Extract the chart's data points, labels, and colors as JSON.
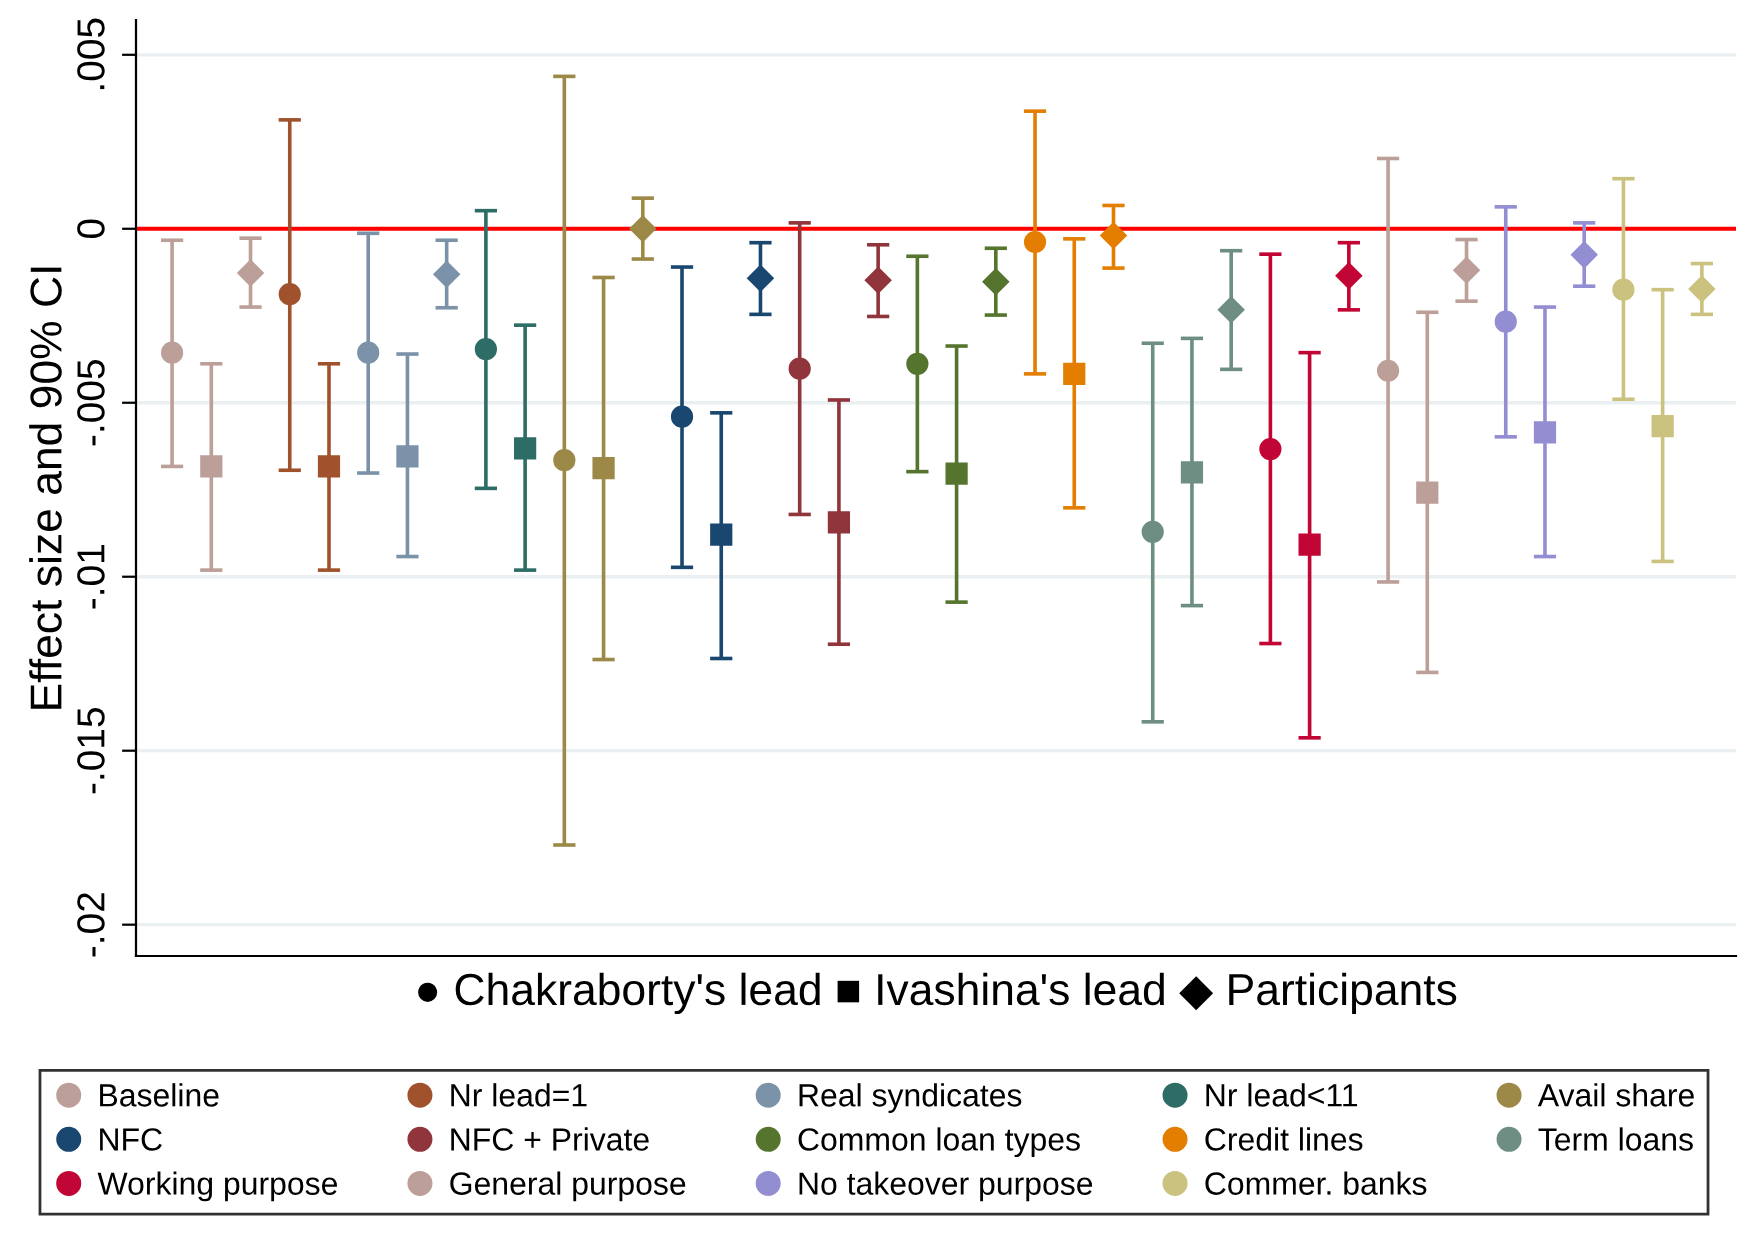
{
  "chart_data": {
    "type": "scatter",
    "ylabel": "Effect size and 90% CI",
    "xlabel": "● Chakraborty's lead ■ Ivashina's lead ◆ Participants",
    "categories": [
      null,
      null,
      null,
      null,
      null,
      null,
      null,
      null,
      null,
      null,
      null,
      null,
      null,
      null,
      null,
      null,
      null,
      null,
      null,
      null,
      null,
      null,
      null,
      null,
      null,
      null,
      null,
      null,
      null,
      null,
      null,
      null,
      null,
      null,
      null,
      null,
      null,
      null,
      null,
      null
    ],
    "marker": [
      "circle",
      "square",
      "diamond",
      "circle",
      "square",
      "circle",
      "square",
      "diamond",
      "circle",
      "square",
      "circle",
      "square",
      "diamond",
      "circle",
      "square",
      "diamond",
      "circle",
      "square",
      "diamond",
      "circle",
      "square",
      "diamond",
      "circle",
      "square",
      "diamond",
      "circle",
      "square",
      "diamond",
      "circle",
      "square",
      "diamond",
      "circle",
      "square",
      "diamond",
      "circle",
      "square",
      "diamond",
      "circle",
      "square",
      "diamond"
    ],
    "ylim": [
      -0.0209,
      0.006
    ],
    "yticks": [
      {
        "value": 0.005,
        "label": ".005"
      },
      {
        "value": 0,
        "label": "0"
      },
      {
        "value": -0.005,
        "label": "-.005"
      },
      {
        "value": -0.01,
        "label": "-.01"
      },
      {
        "value": -0.015,
        "label": "-.015"
      },
      {
        "value": -0.02,
        "label": "-.02"
      }
    ],
    "tick_labels": "y",
    "grid": "y",
    "legend": "bottom",
    "ref_lines": [
      {
        "axis": "y",
        "value": 0,
        "color": "#ff0000"
      }
    ],
    "series": [
      {
        "name": "Baseline",
        "color": "#bc9f98",
        "values": [
          -0.00356,
          -0.00683,
          -0.00127,
          null,
          null,
          null,
          null,
          null,
          null,
          null,
          null,
          null,
          null,
          null,
          null,
          null,
          null,
          null,
          null,
          null,
          null,
          null,
          null,
          null,
          null,
          null,
          null,
          null,
          null,
          null,
          null,
          null,
          null,
          null,
          null,
          null,
          null,
          null,
          null,
          null
        ],
        "errors": [
          [
            -0.00683,
            -0.00033
          ],
          [
            -0.00981,
            -0.00388
          ],
          [
            -0.00225,
            -0.00027
          ],
          null,
          null,
          null,
          null,
          null,
          null,
          null,
          null,
          null,
          null,
          null,
          null,
          null,
          null,
          null,
          null,
          null,
          null,
          null,
          null,
          null,
          null,
          null,
          null,
          null,
          null,
          null,
          null,
          null,
          null,
          null,
          null,
          null,
          null,
          null,
          null,
          null
        ]
      },
      {
        "name": "Nr lead=1",
        "color": "#a0522d",
        "values": [
          null,
          null,
          null,
          -0.00188,
          -0.00683,
          null,
          null,
          null,
          null,
          null,
          null,
          null,
          null,
          null,
          null,
          null,
          null,
          null,
          null,
          null,
          null,
          null,
          null,
          null,
          null,
          null,
          null,
          null,
          null,
          null,
          null,
          null,
          null,
          null,
          null,
          null,
          null,
          null,
          null,
          null
        ],
        "errors": [
          null,
          null,
          null,
          [
            -0.00694,
            0.00313
          ],
          [
            -0.00981,
            -0.00388
          ],
          null,
          null,
          null,
          null,
          null,
          null,
          null,
          null,
          null,
          null,
          null,
          null,
          null,
          null,
          null,
          null,
          null,
          null,
          null,
          null,
          null,
          null,
          null,
          null,
          null,
          null,
          null,
          null,
          null,
          null,
          null,
          null,
          null,
          null,
          null
        ]
      },
      {
        "name": "Real syndicates",
        "color": "#7b92a8",
        "values": [
          null,
          null,
          null,
          null,
          null,
          -0.00356,
          -0.00654,
          -0.00131,
          null,
          null,
          null,
          null,
          null,
          null,
          null,
          null,
          null,
          null,
          null,
          null,
          null,
          null,
          null,
          null,
          null,
          null,
          null,
          null,
          null,
          null,
          null,
          null,
          null,
          null,
          null,
          null,
          null,
          null,
          null,
          null
        ],
        "errors": [
          null,
          null,
          null,
          null,
          null,
          [
            -0.00702,
            -0.00013
          ],
          [
            -0.00942,
            -0.0036
          ],
          [
            -0.00227,
            -0.00033
          ],
          null,
          null,
          null,
          null,
          null,
          null,
          null,
          null,
          null,
          null,
          null,
          null,
          null,
          null,
          null,
          null,
          null,
          null,
          null,
          null,
          null,
          null,
          null,
          null,
          null,
          null,
          null,
          null,
          null,
          null,
          null,
          null
        ]
      },
      {
        "name": "Nr lead<11",
        "color": "#2d6d66",
        "values": [
          null,
          null,
          null,
          null,
          null,
          null,
          null,
          null,
          -0.00346,
          -0.00631,
          null,
          null,
          null,
          null,
          null,
          null,
          null,
          null,
          null,
          null,
          null,
          null,
          null,
          null,
          null,
          null,
          null,
          null,
          null,
          null,
          null,
          null,
          null,
          null,
          null,
          null,
          null,
          null,
          null,
          null
        ],
        "errors": [
          null,
          null,
          null,
          null,
          null,
          null,
          null,
          null,
          [
            -0.00746,
            0.00052
          ],
          [
            -0.00981,
            -0.00277
          ],
          null,
          null,
          null,
          null,
          null,
          null,
          null,
          null,
          null,
          null,
          null,
          null,
          null,
          null,
          null,
          null,
          null,
          null,
          null,
          null,
          null,
          null,
          null,
          null,
          null,
          null,
          null,
          null,
          null,
          null
        ]
      },
      {
        "name": "Avail share",
        "color": "#9c8847",
        "values": [
          null,
          null,
          null,
          null,
          null,
          null,
          null,
          null,
          null,
          null,
          -0.00665,
          -0.00688,
          0.0,
          null,
          null,
          null,
          null,
          null,
          null,
          null,
          null,
          null,
          null,
          null,
          null,
          null,
          null,
          null,
          null,
          null,
          null,
          null,
          null,
          null,
          null,
          null,
          null,
          null,
          null,
          null
        ],
        "errors": [
          null,
          null,
          null,
          null,
          null,
          null,
          null,
          null,
          null,
          null,
          [
            -0.01771,
            0.00438
          ],
          [
            -0.01238,
            -0.0014
          ],
          [
            -0.00087,
            0.00088
          ],
          null,
          null,
          null,
          null,
          null,
          null,
          null,
          null,
          null,
          null,
          null,
          null,
          null,
          null,
          null,
          null,
          null,
          null,
          null,
          null,
          null,
          null,
          null,
          null,
          null,
          null,
          null
        ]
      },
      {
        "name": "NFC",
        "color": "#1a476f",
        "values": [
          null,
          null,
          null,
          null,
          null,
          null,
          null,
          null,
          null,
          null,
          null,
          null,
          null,
          -0.0054,
          -0.00879,
          -0.00142,
          null,
          null,
          null,
          null,
          null,
          null,
          null,
          null,
          null,
          null,
          null,
          null,
          null,
          null,
          null,
          null,
          null,
          null,
          null,
          null,
          null,
          null,
          null,
          null
        ],
        "errors": [
          null,
          null,
          null,
          null,
          null,
          null,
          null,
          null,
          null,
          null,
          null,
          null,
          null,
          [
            -0.00973,
            -0.0011
          ],
          [
            -0.01235,
            -0.00529
          ],
          [
            -0.00246,
            -0.0004
          ],
          null,
          null,
          null,
          null,
          null,
          null,
          null,
          null,
          null,
          null,
          null,
          null,
          null,
          null,
          null,
          null,
          null,
          null,
          null,
          null,
          null,
          null,
          null,
          null
        ]
      },
      {
        "name": "NFC + Private",
        "color": "#90353b",
        "values": [
          null,
          null,
          null,
          null,
          null,
          null,
          null,
          null,
          null,
          null,
          null,
          null,
          null,
          null,
          null,
          null,
          -0.00402,
          -0.00844,
          -0.00148,
          null,
          null,
          null,
          null,
          null,
          null,
          null,
          null,
          null,
          null,
          null,
          null,
          null,
          null,
          null,
          null,
          null,
          null,
          null,
          null,
          null
        ],
        "errors": [
          null,
          null,
          null,
          null,
          null,
          null,
          null,
          null,
          null,
          null,
          null,
          null,
          null,
          null,
          null,
          null,
          [
            -0.00821,
            0.00017
          ],
          [
            -0.01194,
            -0.00492
          ],
          [
            -0.00252,
            -0.00046
          ],
          null,
          null,
          null,
          null,
          null,
          null,
          null,
          null,
          null,
          null,
          null,
          null,
          null,
          null,
          null,
          null,
          null,
          null,
          null,
          null,
          null
        ]
      },
      {
        "name": "Common loan types",
        "color": "#55752f",
        "values": [
          null,
          null,
          null,
          null,
          null,
          null,
          null,
          null,
          null,
          null,
          null,
          null,
          null,
          null,
          null,
          null,
          null,
          null,
          null,
          -0.00388,
          -0.00704,
          -0.00152,
          null,
          null,
          null,
          null,
          null,
          null,
          null,
          null,
          null,
          null,
          null,
          null,
          null,
          null,
          null,
          null,
          null,
          null
        ],
        "errors": [
          null,
          null,
          null,
          null,
          null,
          null,
          null,
          null,
          null,
          null,
          null,
          null,
          null,
          null,
          null,
          null,
          null,
          null,
          null,
          [
            -0.00698,
            -0.00079
          ],
          [
            -0.01073,
            -0.00337
          ],
          [
            -0.00248,
            -0.00056
          ],
          null,
          null,
          null,
          null,
          null,
          null,
          null,
          null,
          null,
          null,
          null,
          null,
          null,
          null,
          null,
          null,
          null,
          null
        ]
      },
      {
        "name": "Credit lines",
        "color": "#e37e00",
        "values": [
          null,
          null,
          null,
          null,
          null,
          null,
          null,
          null,
          null,
          null,
          null,
          null,
          null,
          null,
          null,
          null,
          null,
          null,
          null,
          null,
          null,
          null,
          -0.00038,
          -0.00417,
          -0.00019,
          null,
          null,
          null,
          null,
          null,
          null,
          null,
          null,
          null,
          null,
          null,
          null,
          null,
          null,
          null
        ],
        "errors": [
          null,
          null,
          null,
          null,
          null,
          null,
          null,
          null,
          null,
          null,
          null,
          null,
          null,
          null,
          null,
          null,
          null,
          null,
          null,
          null,
          null,
          null,
          [
            -0.00417,
            0.00338
          ],
          [
            -0.00802,
            -0.00029
          ],
          [
            -0.00113,
            0.00067
          ],
          null,
          null,
          null,
          null,
          null,
          null,
          null,
          null,
          null,
          null,
          null,
          null,
          null,
          null,
          null
        ]
      },
      {
        "name": "Term loans",
        "color": "#6e8e84",
        "values": [
          null,
          null,
          null,
          null,
          null,
          null,
          null,
          null,
          null,
          null,
          null,
          null,
          null,
          null,
          null,
          null,
          null,
          null,
          null,
          null,
          null,
          null,
          null,
          null,
          null,
          -0.00871,
          -0.007,
          -0.00233,
          null,
          null,
          null,
          null,
          null,
          null,
          null,
          null,
          null,
          null,
          null,
          null
        ],
        "errors": [
          null,
          null,
          null,
          null,
          null,
          null,
          null,
          null,
          null,
          null,
          null,
          null,
          null,
          null,
          null,
          null,
          null,
          null,
          null,
          null,
          null,
          null,
          null,
          null,
          null,
          [
            -0.01417,
            -0.00329
          ],
          [
            -0.01083,
            -0.00315
          ],
          [
            -0.00404,
            -0.00063
          ],
          null,
          null,
          null,
          null,
          null,
          null,
          null,
          null,
          null,
          null,
          null,
          null
        ]
      },
      {
        "name": "Working purpose",
        "color": "#c10534",
        "values": [
          null,
          null,
          null,
          null,
          null,
          null,
          null,
          null,
          null,
          null,
          null,
          null,
          null,
          null,
          null,
          null,
          null,
          null,
          null,
          null,
          null,
          null,
          null,
          null,
          null,
          null,
          null,
          null,
          -0.00633,
          -0.00908,
          -0.00135,
          null,
          null,
          null,
          null,
          null,
          null,
          null,
          null,
          null
        ],
        "errors": [
          null,
          null,
          null,
          null,
          null,
          null,
          null,
          null,
          null,
          null,
          null,
          null,
          null,
          null,
          null,
          null,
          null,
          null,
          null,
          null,
          null,
          null,
          null,
          null,
          null,
          null,
          null,
          null,
          [
            -0.01192,
            -0.00073
          ],
          [
            -0.01463,
            -0.00356
          ],
          [
            -0.00233,
            -0.0004
          ],
          null,
          null,
          null,
          null,
          null,
          null,
          null,
          null,
          null
        ]
      },
      {
        "name": "General purpose",
        "color": "#bc9f98",
        "values": [
          null,
          null,
          null,
          null,
          null,
          null,
          null,
          null,
          null,
          null,
          null,
          null,
          null,
          null,
          null,
          null,
          null,
          null,
          null,
          null,
          null,
          null,
          null,
          null,
          null,
          null,
          null,
          null,
          null,
          null,
          null,
          -0.00408,
          -0.00758,
          -0.00119,
          null,
          null,
          null,
          null,
          null,
          null
        ],
        "errors": [
          null,
          null,
          null,
          null,
          null,
          null,
          null,
          null,
          null,
          null,
          null,
          null,
          null,
          null,
          null,
          null,
          null,
          null,
          null,
          null,
          null,
          null,
          null,
          null,
          null,
          null,
          null,
          null,
          null,
          null,
          null,
          [
            -0.01015,
            0.00202
          ],
          [
            -0.01275,
            -0.0024
          ],
          [
            -0.00208,
            -0.00031
          ],
          null,
          null,
          null,
          null,
          null,
          null
        ]
      },
      {
        "name": "No takeover purpose",
        "color": "#938dd2",
        "values": [
          null,
          null,
          null,
          null,
          null,
          null,
          null,
          null,
          null,
          null,
          null,
          null,
          null,
          null,
          null,
          null,
          null,
          null,
          null,
          null,
          null,
          null,
          null,
          null,
          null,
          null,
          null,
          null,
          null,
          null,
          null,
          null,
          null,
          null,
          -0.00267,
          -0.00585,
          -0.00075,
          null,
          null,
          null
        ],
        "errors": [
          null,
          null,
          null,
          null,
          null,
          null,
          null,
          null,
          null,
          null,
          null,
          null,
          null,
          null,
          null,
          null,
          null,
          null,
          null,
          null,
          null,
          null,
          null,
          null,
          null,
          null,
          null,
          null,
          null,
          null,
          null,
          null,
          null,
          null,
          [
            -0.00598,
            0.00063
          ],
          [
            -0.00942,
            -0.00225
          ],
          [
            -0.00165,
            0.00017
          ],
          null,
          null,
          null
        ]
      },
      {
        "name": "Commer. banks",
        "color": "#cac27e",
        "values": [
          null,
          null,
          null,
          null,
          null,
          null,
          null,
          null,
          null,
          null,
          null,
          null,
          null,
          null,
          null,
          null,
          null,
          null,
          null,
          null,
          null,
          null,
          null,
          null,
          null,
          null,
          null,
          null,
          null,
          null,
          null,
          null,
          null,
          null,
          null,
          null,
          null,
          -0.00175,
          -0.00567,
          -0.00173
        ],
        "errors": [
          null,
          null,
          null,
          null,
          null,
          null,
          null,
          null,
          null,
          null,
          null,
          null,
          null,
          null,
          null,
          null,
          null,
          null,
          null,
          null,
          null,
          null,
          null,
          null,
          null,
          null,
          null,
          null,
          null,
          null,
          null,
          null,
          null,
          null,
          null,
          null,
          null,
          [
            -0.0049,
            0.00144
          ],
          [
            -0.00956,
            -0.00175
          ],
          [
            -0.00246,
            -0.001
          ]
        ]
      }
    ]
  }
}
